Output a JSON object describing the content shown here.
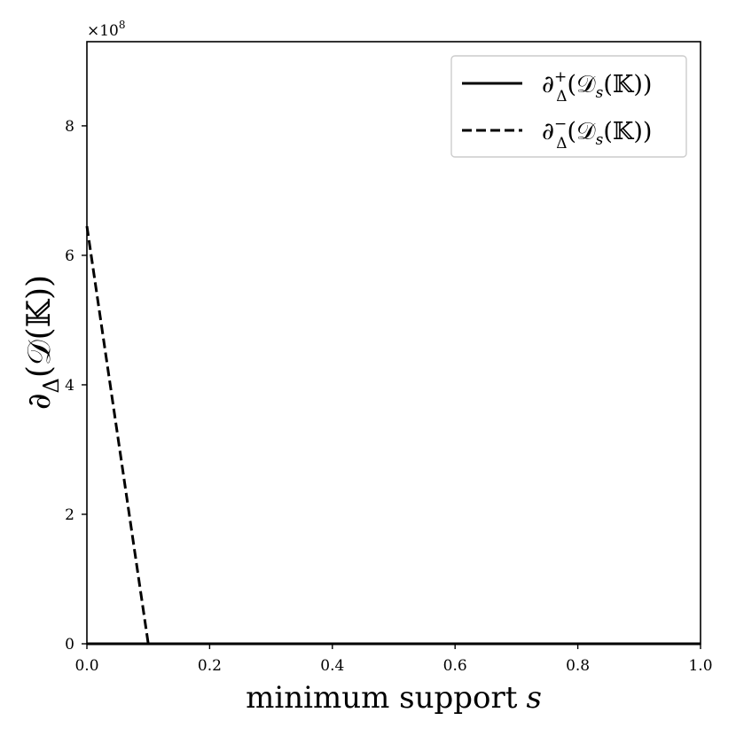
{
  "chart_data": {
    "type": "line",
    "xlabel": "minimum support s",
    "xlabel_main": "minimum support",
    "xlabel_var": "s",
    "ylabel": "∂Δ(𝒟(𝕂))",
    "ylabel_parts": {
      "main": "∂",
      "sub": "Δ",
      "rest": "(𝒟(𝕂))"
    },
    "y_multiplier": "×10",
    "y_multiplier_exp": "8",
    "xlim": [
      0.0,
      1.0
    ],
    "ylim": [
      0,
      9.3
    ],
    "y_scale_power": 8,
    "x_ticks": [
      {
        "value": 0.0,
        "label": "0.0"
      },
      {
        "value": 0.2,
        "label": "0.2"
      },
      {
        "value": 0.4,
        "label": "0.4"
      },
      {
        "value": 0.6,
        "label": "0.6"
      },
      {
        "value": 0.8,
        "label": "0.8"
      },
      {
        "value": 1.0,
        "label": "1.0"
      }
    ],
    "y_ticks": [
      {
        "value": 0,
        "label": "0"
      },
      {
        "value": 2,
        "label": "2"
      },
      {
        "value": 4,
        "label": "4"
      },
      {
        "value": 6,
        "label": "6"
      },
      {
        "value": 8,
        "label": "8"
      }
    ],
    "grid": false,
    "legend_position": "top-right",
    "series": [
      {
        "name": "∂Δ+(𝒟s(𝕂))",
        "legend": {
          "main": "∂",
          "sup": "+",
          "sub": "Δ",
          "rest": "(𝒟",
          "rest_sub": "s",
          "rest_end": "(𝕂))"
        },
        "style": "solid",
        "color": "#000000",
        "x": [
          0.0,
          0.1,
          0.2,
          0.3,
          0.4,
          0.5,
          0.6,
          0.7,
          0.8,
          0.9,
          1.0
        ],
        "y": [
          0,
          0,
          0,
          0,
          0,
          0,
          0,
          0,
          0,
          0,
          0
        ]
      },
      {
        "name": "∂Δ−(𝒟s(𝕂))",
        "legend": {
          "main": "∂",
          "sup": "−",
          "sub": "Δ",
          "rest": "(𝒟",
          "rest_sub": "s",
          "rest_end": "(𝕂))"
        },
        "style": "dashed",
        "color": "#000000",
        "x": [
          0.0,
          0.1,
          0.2,
          0.3,
          0.4,
          0.5,
          0.6,
          0.7,
          0.8,
          0.9,
          1.0
        ],
        "y": [
          6.45,
          0,
          0,
          0,
          0,
          0,
          0,
          0,
          0,
          0,
          0
        ]
      }
    ]
  }
}
